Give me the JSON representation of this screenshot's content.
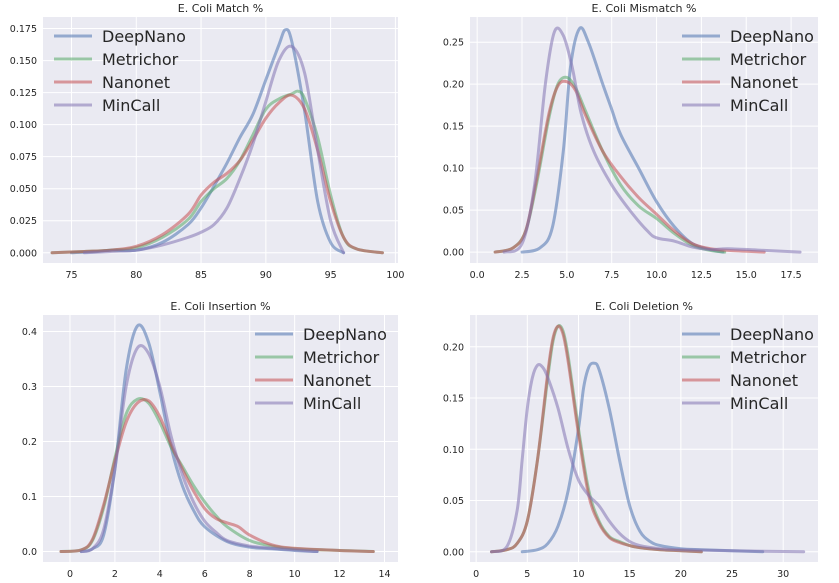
{
  "chart_data": [
    {
      "type": "line",
      "title": "E. Coli Match %",
      "xlabel": "",
      "ylabel": "",
      "xlim": [
        72.8,
        100.2
      ],
      "ylim": [
        -0.008,
        0.184
      ],
      "xticks": [
        75,
        80,
        85,
        90,
        95,
        100
      ],
      "yticks": [
        0.0,
        0.025,
        0.05,
        0.075,
        0.1,
        0.125,
        0.15,
        0.175
      ],
      "xtick_labels": [
        "75",
        "80",
        "85",
        "90",
        "95",
        "100"
      ],
      "ytick_labels": [
        "0.000",
        "0.025",
        "0.050",
        "0.075",
        "0.100",
        "0.125",
        "0.150",
        "0.175"
      ],
      "legend_loc": "top-left",
      "series": [
        {
          "name": "DeepNano",
          "x": [
            75,
            77,
            78,
            80,
            82,
            84,
            85,
            86,
            87,
            88,
            89,
            90,
            91,
            91.5,
            92,
            93,
            94,
            95,
            96
          ],
          "y": [
            0,
            0.001,
            0.002,
            0.002,
            0.008,
            0.022,
            0.035,
            0.052,
            0.07,
            0.09,
            0.108,
            0.135,
            0.162,
            0.174,
            0.165,
            0.11,
            0.04,
            0.008,
            0
          ]
        },
        {
          "name": "Metrichor",
          "x": [
            73.5,
            76,
            78,
            80,
            82,
            84,
            85,
            86,
            87,
            88,
            89,
            90,
            91,
            92,
            92.5,
            93,
            94,
            95,
            96,
            97,
            99
          ],
          "y": [
            0,
            0.001,
            0.002,
            0.004,
            0.012,
            0.026,
            0.04,
            0.05,
            0.058,
            0.072,
            0.092,
            0.112,
            0.12,
            0.124,
            0.126,
            0.12,
            0.09,
            0.045,
            0.012,
            0.003,
            0
          ]
        },
        {
          "name": "Nanonet",
          "x": [
            73.5,
            76,
            78,
            80,
            82,
            84,
            85,
            86,
            87,
            88,
            89,
            90,
            91,
            92,
            93,
            94,
            95,
            96,
            97,
            99
          ],
          "y": [
            0,
            0.001,
            0.002,
            0.005,
            0.014,
            0.03,
            0.045,
            0.055,
            0.062,
            0.072,
            0.088,
            0.105,
            0.117,
            0.123,
            0.112,
            0.08,
            0.04,
            0.012,
            0.003,
            0
          ]
        },
        {
          "name": "MinCall",
          "x": [
            76,
            78,
            80,
            82,
            84,
            85,
            86,
            87,
            88,
            89,
            90,
            91,
            92,
            93,
            94,
            95,
            96
          ],
          "y": [
            0,
            0.001,
            0.002,
            0.006,
            0.012,
            0.016,
            0.022,
            0.035,
            0.058,
            0.085,
            0.118,
            0.15,
            0.161,
            0.14,
            0.08,
            0.025,
            0
          ]
        }
      ]
    },
    {
      "type": "line",
      "title": "E. Coli Mismatch %",
      "xlabel": "",
      "ylabel": "",
      "xlim": [
        -0.4,
        19.0
      ],
      "ylim": [
        -0.013,
        0.28
      ],
      "xticks": [
        0.0,
        2.5,
        5.0,
        7.5,
        10.0,
        12.5,
        15.0,
        17.5
      ],
      "yticks": [
        0.0,
        0.05,
        0.1,
        0.15,
        0.2,
        0.25
      ],
      "xtick_labels": [
        "0.0",
        "2.5",
        "5.0",
        "7.5",
        "10.0",
        "12.5",
        "15.0",
        "17.5"
      ],
      "ytick_labels": [
        "0.00",
        "0.05",
        "0.10",
        "0.15",
        "0.20",
        "0.25"
      ],
      "legend_loc": "top-right",
      "series": [
        {
          "name": "DeepNano",
          "x": [
            2.5,
            3.5,
            4.2,
            4.8,
            5.2,
            5.7,
            6.2,
            7.0,
            7.5,
            8.0,
            9.0,
            10.0,
            11.0,
            12.0,
            13.0,
            13.7
          ],
          "y": [
            0,
            0.005,
            0.03,
            0.12,
            0.22,
            0.266,
            0.25,
            0.2,
            0.17,
            0.14,
            0.1,
            0.06,
            0.03,
            0.01,
            0.003,
            0
          ]
        },
        {
          "name": "Metrichor",
          "x": [
            1.0,
            2.0,
            2.7,
            3.3,
            4.0,
            4.5,
            5.0,
            5.5,
            6.0,
            7.0,
            8.0,
            9.0,
            10.0,
            11.0,
            12.0,
            13.0,
            13.8
          ],
          "y": [
            0,
            0.005,
            0.025,
            0.08,
            0.16,
            0.2,
            0.208,
            0.195,
            0.17,
            0.12,
            0.08,
            0.055,
            0.04,
            0.022,
            0.008,
            0.002,
            0
          ]
        },
        {
          "name": "Nanonet",
          "x": [
            1.0,
            2.0,
            2.7,
            3.3,
            4.0,
            4.5,
            5.0,
            5.5,
            6.0,
            7.0,
            8.0,
            9.0,
            10.0,
            11.0,
            12.0,
            13.0,
            14.0,
            16.0
          ],
          "y": [
            0,
            0.005,
            0.025,
            0.085,
            0.165,
            0.198,
            0.203,
            0.192,
            0.165,
            0.12,
            0.09,
            0.065,
            0.045,
            0.025,
            0.01,
            0.004,
            0.002,
            0
          ]
        },
        {
          "name": "MinCall",
          "x": [
            1.5,
            2.5,
            3.2,
            3.8,
            4.3,
            4.8,
            5.3,
            5.8,
            6.5,
            7.5,
            8.5,
            9.5,
            10.0,
            11.0,
            12.0,
            13.0,
            14.0,
            16.0,
            18.0
          ],
          "y": [
            0,
            0.01,
            0.08,
            0.2,
            0.262,
            0.258,
            0.22,
            0.165,
            0.12,
            0.08,
            0.05,
            0.025,
            0.017,
            0.013,
            0.006,
            0.003,
            0.004,
            0.002,
            0
          ]
        }
      ]
    },
    {
      "type": "line",
      "title": "E. Coli Insertion %",
      "xlabel": "",
      "ylabel": "",
      "xlim": [
        -1.2,
        14.6
      ],
      "ylim": [
        -0.019,
        0.43
      ],
      "xticks": [
        0,
        2,
        4,
        6,
        8,
        10,
        12,
        14
      ],
      "yticks": [
        0.0,
        0.1,
        0.2,
        0.3,
        0.4
      ],
      "xtick_labels": [
        "0",
        "2",
        "4",
        "6",
        "8",
        "10",
        "12",
        "14"
      ],
      "ytick_labels": [
        "0.0",
        "0.1",
        "0.2",
        "0.3",
        "0.4"
      ],
      "legend_loc": "top-right",
      "series": [
        {
          "name": "DeepNano",
          "x": [
            0.5,
            1.0,
            1.5,
            2.0,
            2.5,
            3.0,
            3.5,
            4.0,
            4.5,
            5.0,
            5.5,
            6.0,
            7.0,
            8.0,
            9.0,
            10.0,
            11.0
          ],
          "y": [
            0,
            0.005,
            0.03,
            0.15,
            0.33,
            0.41,
            0.38,
            0.29,
            0.19,
            0.12,
            0.075,
            0.045,
            0.018,
            0.008,
            0.005,
            0.002,
            0
          ]
        },
        {
          "name": "Metrichor",
          "x": [
            -0.4,
            0.5,
            1.0,
            1.5,
            2.0,
            2.5,
            3.0,
            3.5,
            4.0,
            4.5,
            5.0,
            5.5,
            6.0,
            6.5,
            7.0,
            8.0,
            9.0,
            10.0,
            12.0,
            13.5
          ],
          "y": [
            0,
            0.003,
            0.02,
            0.08,
            0.17,
            0.25,
            0.277,
            0.27,
            0.235,
            0.19,
            0.155,
            0.12,
            0.09,
            0.065,
            0.045,
            0.02,
            0.01,
            0.005,
            0.002,
            0
          ]
        },
        {
          "name": "Nanonet",
          "x": [
            -0.4,
            0.5,
            1.0,
            1.5,
            2.0,
            2.5,
            3.0,
            3.5,
            4.0,
            4.5,
            5.0,
            5.5,
            6.0,
            6.5,
            7.0,
            7.5,
            8.0,
            9.0,
            10.0,
            12.0,
            13.5
          ],
          "y": [
            0,
            0.003,
            0.022,
            0.085,
            0.165,
            0.235,
            0.27,
            0.274,
            0.245,
            0.195,
            0.15,
            0.11,
            0.078,
            0.06,
            0.052,
            0.045,
            0.03,
            0.012,
            0.006,
            0.002,
            0
          ]
        },
        {
          "name": "MinCall",
          "x": [
            0.5,
            1.0,
            1.5,
            2.0,
            2.5,
            3.0,
            3.5,
            4.0,
            4.5,
            5.0,
            5.5,
            6.0,
            6.5,
            7.0,
            8.0,
            9.0,
            10.0,
            11.0
          ],
          "y": [
            0,
            0.005,
            0.04,
            0.15,
            0.3,
            0.37,
            0.36,
            0.3,
            0.21,
            0.14,
            0.09,
            0.055,
            0.035,
            0.02,
            0.01,
            0.006,
            0.003,
            0
          ]
        }
      ]
    },
    {
      "type": "line",
      "title": "E. Coli Deletion %",
      "xlabel": "",
      "ylabel": "",
      "xlim": [
        -0.6,
        33.4
      ],
      "ylim": [
        -0.01,
        0.231
      ],
      "xticks": [
        0,
        5,
        10,
        15,
        20,
        25,
        30
      ],
      "yticks": [
        0.0,
        0.05,
        0.1,
        0.15,
        0.2
      ],
      "xtick_labels": [
        "0",
        "5",
        "10",
        "15",
        "20",
        "25",
        "30"
      ],
      "ytick_labels": [
        "0.00",
        "0.05",
        "0.10",
        "0.15",
        "0.20"
      ],
      "legend_loc": "top-right",
      "series": [
        {
          "name": "DeepNano",
          "x": [
            4.5,
            6.0,
            7.0,
            8.0,
            9.0,
            10.0,
            10.5,
            11.0,
            11.5,
            12.0,
            13.0,
            14.0,
            15.0,
            16.0,
            17.0,
            18.0,
            20.0,
            22.0,
            25.0,
            28.0
          ],
          "y": [
            0,
            0.002,
            0.008,
            0.025,
            0.06,
            0.12,
            0.16,
            0.18,
            0.184,
            0.178,
            0.14,
            0.09,
            0.045,
            0.02,
            0.01,
            0.006,
            0.003,
            0.002,
            0.001,
            0
          ]
        },
        {
          "name": "Metrichor",
          "x": [
            1.5,
            3.0,
            4.0,
            5.0,
            6.0,
            7.0,
            7.5,
            8.0,
            8.5,
            9.0,
            10.0,
            11.0,
            12.0,
            13.0,
            14.0,
            15.0,
            16.0,
            18.0,
            20.0,
            22.0
          ],
          "y": [
            0,
            0.002,
            0.008,
            0.03,
            0.09,
            0.17,
            0.205,
            0.22,
            0.215,
            0.19,
            0.12,
            0.06,
            0.03,
            0.015,
            0.01,
            0.006,
            0.004,
            0.002,
            0.001,
            0
          ]
        },
        {
          "name": "Nanonet",
          "x": [
            1.5,
            3.0,
            4.0,
            5.0,
            6.0,
            7.0,
            7.5,
            8.0,
            8.5,
            9.0,
            10.0,
            11.0,
            12.0,
            13.0,
            14.0,
            15.0,
            16.0,
            18.0,
            20.0,
            22.0
          ],
          "y": [
            0,
            0.002,
            0.008,
            0.03,
            0.09,
            0.175,
            0.208,
            0.22,
            0.212,
            0.185,
            0.115,
            0.055,
            0.028,
            0.014,
            0.009,
            0.006,
            0.004,
            0.002,
            0.001,
            0
          ]
        },
        {
          "name": "MinCall",
          "x": [
            1.5,
            3.0,
            4.0,
            4.5,
            5.0,
            5.5,
            6.0,
            6.5,
            7.0,
            8.0,
            9.0,
            10.0,
            11.0,
            12.0,
            13.0,
            14.0,
            15.0,
            16.0,
            18.0,
            20.0,
            25.0,
            32.0
          ],
          "y": [
            0,
            0.005,
            0.04,
            0.09,
            0.14,
            0.17,
            0.182,
            0.18,
            0.17,
            0.14,
            0.1,
            0.07,
            0.055,
            0.045,
            0.03,
            0.018,
            0.01,
            0.006,
            0.003,
            0.002,
            0.001,
            0
          ]
        }
      ]
    }
  ],
  "colors": {
    "DeepNano": "#4c72b0",
    "Metrichor": "#55a868",
    "Nanonet": "#c44e52",
    "MinCall": "#8172b2",
    "axes_bg": "#eaeaf2",
    "grid": "#ffffff",
    "text": "#262626",
    "title": "#262626"
  }
}
